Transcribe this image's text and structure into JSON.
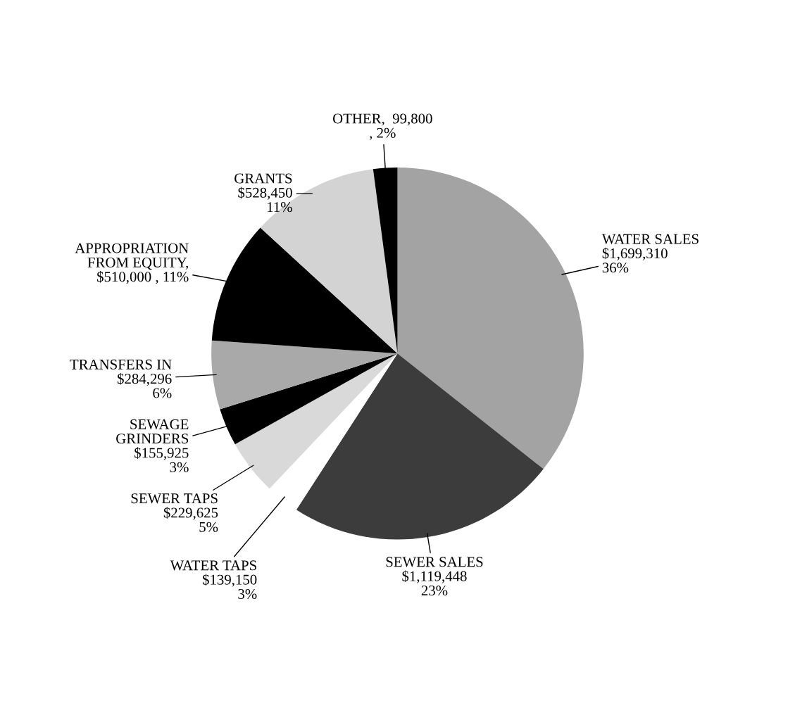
{
  "chart_data": {
    "type": "pie",
    "categories": [
      "WATER SALES",
      "SEWER SALES",
      "WATER TAPS",
      "SEWER TAPS",
      "SEWAGE\nGRINDERS",
      "TRANSFERS IN",
      "APPROPRIATION\nFROM EQUITY",
      "GRANTS",
      "OTHER"
    ],
    "values": [
      1699310,
      1119448,
      139150,
      229625,
      155925,
      284296,
      510000,
      528450,
      99800
    ],
    "value_labels": [
      "$1,699,310\n36%",
      "$1,119,448\n23%",
      "$139,150\n3%",
      "$229,625\n5%",
      "$155,925\n3%",
      "$284,296\n6%",
      ",\n$510,000 , 11%",
      "$528,450\n11%",
      ",  99,800\n, 2%"
    ],
    "colors": [
      "#a3a3a3",
      "#3c3c3c",
      "#ffffff",
      "#d9d9d9",
      "#000000",
      "#a9a9a9",
      "#000000",
      "#d3d3d3",
      "#000000"
    ],
    "legend": false
  }
}
